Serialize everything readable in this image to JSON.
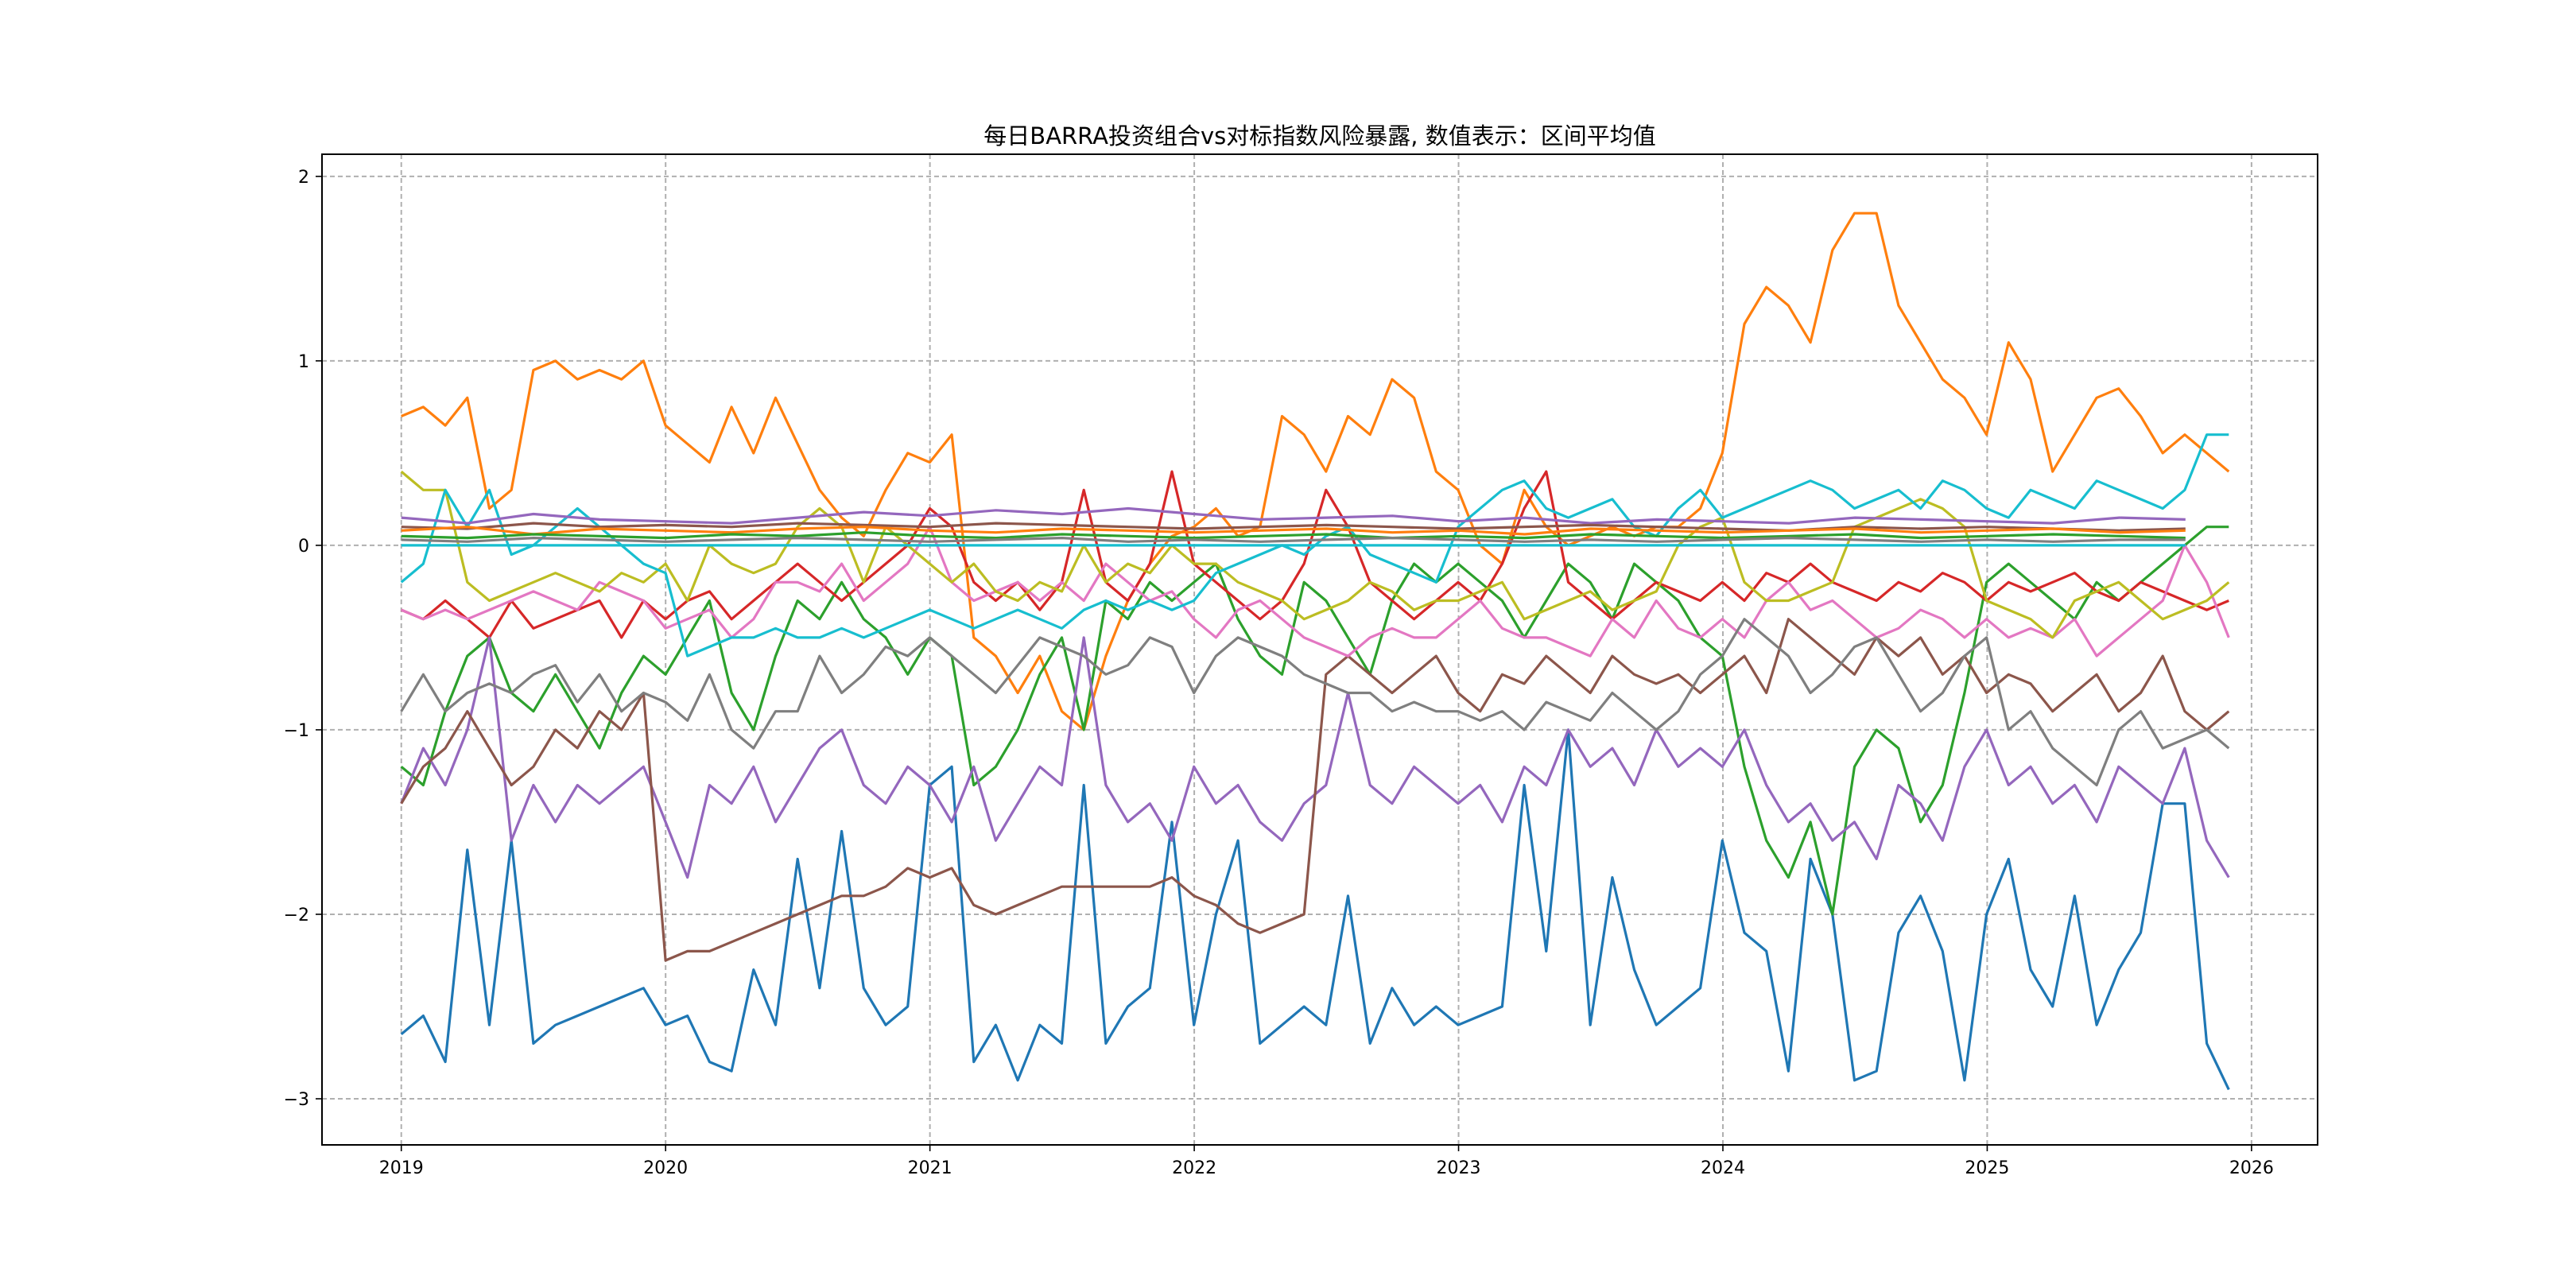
{
  "chart_data": {
    "type": "line",
    "title": "每日BARRA投资组合vs对标指数风险暴露, 数值表示：区间平均值",
    "xlabel": "",
    "ylabel": "",
    "xlim": [
      2018.7,
      2026.25
    ],
    "ylim": [
      -3.25,
      2.12
    ],
    "x_ticks": [
      2019,
      2020,
      2021,
      2022,
      2023,
      2024,
      2025,
      2026
    ],
    "x_tick_labels": [
      "2019",
      "2020",
      "2021",
      "2022",
      "2023",
      "2024",
      "2025",
      "2026"
    ],
    "y_ticks": [
      -3,
      -2,
      -1,
      0,
      1,
      2
    ],
    "y_tick_labels": [
      "−3",
      "−2",
      "−1",
      "0",
      "1",
      "2"
    ],
    "grid": true,
    "legend": "none",
    "series": [
      {
        "color": "#1f77b4",
        "start": 2019.0,
        "step": 0.0833,
        "values": [
          -2.65,
          -2.55,
          -2.8,
          -1.65,
          -2.6,
          -1.6,
          -2.7,
          -2.6,
          -2.55,
          -2.5,
          -2.45,
          -2.4,
          -2.6,
          -2.55,
          -2.8,
          -2.85,
          -2.3,
          -2.6,
          -1.7,
          -2.4,
          -1.55,
          -2.4,
          -2.6,
          -2.5,
          -1.3,
          -1.2,
          -2.8,
          -2.6,
          -2.9,
          -2.6,
          -2.7,
          -1.3,
          -2.7,
          -2.5,
          -2.4,
          -1.5,
          -2.6,
          -2.0,
          -1.6,
          -2.7,
          -2.6,
          -2.5,
          -2.6,
          -1.9,
          -2.7,
          -2.4,
          -2.6,
          -2.5,
          -2.6,
          -2.55,
          -2.5,
          -1.3,
          -2.2,
          -1.0,
          -2.6,
          -1.8,
          -2.3,
          -2.6,
          -2.5,
          -2.4,
          -1.6,
          -2.1,
          -2.2,
          -2.85,
          -1.7,
          -2.0,
          -2.9,
          -2.85,
          -2.1,
          -1.9,
          -2.2,
          -2.9,
          -2.0,
          -1.7,
          -2.3,
          -2.5,
          -1.9,
          -2.6,
          -2.3,
          -2.1,
          -1.4,
          -1.4,
          -2.7,
          -2.95
        ]
      },
      {
        "color": "#ff7f0e",
        "start": 2019.0,
        "step": 0.0833,
        "values": [
          0.7,
          0.75,
          0.65,
          0.8,
          0.2,
          0.3,
          0.95,
          1.0,
          0.9,
          0.95,
          0.9,
          1.0,
          0.65,
          0.55,
          0.45,
          0.75,
          0.5,
          0.8,
          0.55,
          0.3,
          0.15,
          0.05,
          0.3,
          0.5,
          0.45,
          0.6,
          -0.5,
          -0.6,
          -0.8,
          -0.6,
          -0.9,
          -1.0,
          -0.6,
          -0.3,
          -0.1,
          0.05,
          0.1,
          0.2,
          0.05,
          0.1,
          0.7,
          0.6,
          0.4,
          0.7,
          0.6,
          0.9,
          0.8,
          0.4,
          0.3,
          0.0,
          -0.1,
          0.3,
          0.1,
          0.0,
          0.05,
          0.1,
          0.05,
          0.1,
          0.1,
          0.2,
          0.5,
          1.2,
          1.4,
          1.3,
          1.1,
          1.6,
          1.8,
          1.8,
          1.3,
          1.1,
          0.9,
          0.8,
          0.6,
          1.1,
          0.9,
          0.4,
          0.6,
          0.8,
          0.85,
          0.7,
          0.5,
          0.6,
          0.5,
          0.4
        ]
      },
      {
        "color": "#2ca02c",
        "start": 2019.0,
        "step": 0.0833,
        "values": [
          -1.2,
          -1.3,
          -0.9,
          -0.6,
          -0.5,
          -0.8,
          -0.9,
          -0.7,
          -0.9,
          -1.1,
          -0.8,
          -0.6,
          -0.7,
          -0.5,
          -0.3,
          -0.8,
          -1.0,
          -0.6,
          -0.3,
          -0.4,
          -0.2,
          -0.4,
          -0.5,
          -0.7,
          -0.5,
          -0.6,
          -1.3,
          -1.2,
          -1.0,
          -0.7,
          -0.5,
          -1.0,
          -0.3,
          -0.4,
          -0.2,
          -0.3,
          -0.2,
          -0.1,
          -0.4,
          -0.6,
          -0.7,
          -0.2,
          -0.3,
          -0.5,
          -0.7,
          -0.3,
          -0.1,
          -0.2,
          -0.1,
          -0.2,
          -0.3,
          -0.5,
          -0.3,
          -0.1,
          -0.2,
          -0.4,
          -0.1,
          -0.2,
          -0.3,
          -0.5,
          -0.6,
          -1.2,
          -1.6,
          -1.8,
          -1.5,
          -2.0,
          -1.2,
          -1.0,
          -1.1,
          -1.5,
          -1.3,
          -0.8,
          -0.2,
          -0.1,
          -0.2,
          -0.3,
          -0.4,
          -0.2,
          -0.3,
          -0.2,
          -0.1,
          0.0,
          0.1,
          0.1
        ]
      },
      {
        "color": "#d62728",
        "start": 2019.0,
        "step": 0.0833,
        "values": [
          -0.35,
          -0.4,
          -0.3,
          -0.4,
          -0.5,
          -0.3,
          -0.45,
          -0.4,
          -0.35,
          -0.3,
          -0.5,
          -0.3,
          -0.4,
          -0.3,
          -0.25,
          -0.4,
          -0.3,
          -0.2,
          -0.1,
          -0.2,
          -0.3,
          -0.2,
          -0.1,
          0.0,
          0.2,
          0.1,
          -0.2,
          -0.3,
          -0.2,
          -0.35,
          -0.2,
          0.3,
          -0.2,
          -0.3,
          -0.1,
          0.4,
          -0.1,
          -0.2,
          -0.3,
          -0.4,
          -0.3,
          -0.1,
          0.3,
          0.1,
          -0.2,
          -0.3,
          -0.4,
          -0.3,
          -0.2,
          -0.3,
          -0.1,
          0.2,
          0.4,
          -0.2,
          -0.3,
          -0.4,
          -0.3,
          -0.2,
          -0.25,
          -0.3,
          -0.2,
          -0.3,
          -0.15,
          -0.2,
          -0.1,
          -0.2,
          -0.25,
          -0.3,
          -0.2,
          -0.25,
          -0.15,
          -0.2,
          -0.3,
          -0.2,
          -0.25,
          -0.2,
          -0.15,
          -0.25,
          -0.3,
          -0.2,
          -0.25,
          -0.3,
          -0.35,
          -0.3
        ]
      },
      {
        "color": "#9467bd",
        "start": 2019.0,
        "step": 0.0833,
        "values": [
          -1.4,
          -1.1,
          -1.3,
          -1.0,
          -0.5,
          -1.6,
          -1.3,
          -1.5,
          -1.3,
          -1.4,
          -1.3,
          -1.2,
          -1.5,
          -1.8,
          -1.3,
          -1.4,
          -1.2,
          -1.5,
          -1.3,
          -1.1,
          -1.0,
          -1.3,
          -1.4,
          -1.2,
          -1.3,
          -1.5,
          -1.2,
          -1.6,
          -1.4,
          -1.2,
          -1.3,
          -0.5,
          -1.3,
          -1.5,
          -1.4,
          -1.6,
          -1.2,
          -1.4,
          -1.3,
          -1.5,
          -1.6,
          -1.4,
          -1.3,
          -0.8,
          -1.3,
          -1.4,
          -1.2,
          -1.3,
          -1.4,
          -1.3,
          -1.5,
          -1.2,
          -1.3,
          -1.0,
          -1.2,
          -1.1,
          -1.3,
          -1.0,
          -1.2,
          -1.1,
          -1.2,
          -1.0,
          -1.3,
          -1.5,
          -1.4,
          -1.6,
          -1.5,
          -1.7,
          -1.3,
          -1.4,
          -1.6,
          -1.2,
          -1.0,
          -1.3,
          -1.2,
          -1.4,
          -1.3,
          -1.5,
          -1.2,
          -1.3,
          -1.4,
          -1.1,
          -1.6,
          -1.8
        ]
      },
      {
        "color": "#8c564b",
        "start": 2019.0,
        "step": 0.0833,
        "values": [
          -1.4,
          -1.2,
          -1.1,
          -0.9,
          -1.1,
          -1.3,
          -1.2,
          -1.0,
          -1.1,
          -0.9,
          -1.0,
          -0.8,
          -2.25,
          -2.2,
          -2.2,
          -2.15,
          -2.1,
          -2.05,
          -2.0,
          -1.95,
          -1.9,
          -1.9,
          -1.85,
          -1.75,
          -1.8,
          -1.75,
          -1.95,
          -2.0,
          -1.95,
          -1.9,
          -1.85,
          -1.85,
          -1.85,
          -1.85,
          -1.85,
          -1.8,
          -1.9,
          -1.95,
          -2.05,
          -2.1,
          -2.05,
          -2.0,
          -0.7,
          -0.6,
          -0.7,
          -0.8,
          -0.7,
          -0.6,
          -0.8,
          -0.9,
          -0.7,
          -0.75,
          -0.6,
          -0.7,
          -0.8,
          -0.6,
          -0.7,
          -0.75,
          -0.7,
          -0.8,
          -0.7,
          -0.6,
          -0.8,
          -0.4,
          -0.5,
          -0.6,
          -0.7,
          -0.5,
          -0.6,
          -0.5,
          -0.7,
          -0.6,
          -0.8,
          -0.7,
          -0.75,
          -0.9,
          -0.8,
          -0.7,
          -0.9,
          -0.8,
          -0.6,
          -0.9,
          -1.0,
          -0.9
        ]
      },
      {
        "color": "#e377c2",
        "start": 2019.0,
        "step": 0.0833,
        "values": [
          -0.35,
          -0.4,
          -0.35,
          -0.4,
          -0.35,
          -0.3,
          -0.25,
          -0.3,
          -0.35,
          -0.2,
          -0.25,
          -0.3,
          -0.45,
          -0.4,
          -0.35,
          -0.5,
          -0.4,
          -0.2,
          -0.2,
          -0.25,
          -0.1,
          -0.3,
          -0.2,
          -0.1,
          0.1,
          -0.2,
          -0.3,
          -0.25,
          -0.2,
          -0.3,
          -0.2,
          -0.3,
          -0.1,
          -0.2,
          -0.3,
          -0.25,
          -0.4,
          -0.5,
          -0.35,
          -0.3,
          -0.4,
          -0.5,
          -0.55,
          -0.6,
          -0.5,
          -0.45,
          -0.5,
          -0.5,
          -0.4,
          -0.3,
          -0.45,
          -0.5,
          -0.5,
          -0.55,
          -0.6,
          -0.4,
          -0.5,
          -0.3,
          -0.45,
          -0.5,
          -0.4,
          -0.5,
          -0.3,
          -0.2,
          -0.35,
          -0.3,
          -0.4,
          -0.5,
          -0.45,
          -0.35,
          -0.4,
          -0.5,
          -0.4,
          -0.5,
          -0.45,
          -0.5,
          -0.4,
          -0.6,
          -0.5,
          -0.4,
          -0.3,
          0.0,
          -0.2,
          -0.5
        ]
      },
      {
        "color": "#7f7f7f",
        "start": 2019.0,
        "step": 0.0833,
        "values": [
          -0.9,
          -0.7,
          -0.9,
          -0.8,
          -0.75,
          -0.8,
          -0.7,
          -0.65,
          -0.85,
          -0.7,
          -0.9,
          -0.8,
          -0.85,
          -0.95,
          -0.7,
          -1.0,
          -1.1,
          -0.9,
          -0.9,
          -0.6,
          -0.8,
          -0.7,
          -0.55,
          -0.6,
          -0.5,
          -0.6,
          -0.7,
          -0.8,
          -0.65,
          -0.5,
          -0.55,
          -0.6,
          -0.7,
          -0.65,
          -0.5,
          -0.55,
          -0.8,
          -0.6,
          -0.5,
          -0.55,
          -0.6,
          -0.7,
          -0.75,
          -0.8,
          -0.8,
          -0.9,
          -0.85,
          -0.9,
          -0.9,
          -0.95,
          -0.9,
          -1.0,
          -0.85,
          -0.9,
          -0.95,
          -0.8,
          -0.9,
          -1.0,
          -0.9,
          -0.7,
          -0.6,
          -0.4,
          -0.5,
          -0.6,
          -0.8,
          -0.7,
          -0.55,
          -0.5,
          -0.7,
          -0.9,
          -0.8,
          -0.6,
          -0.5,
          -1.0,
          -0.9,
          -1.1,
          -1.2,
          -1.3,
          -1.0,
          -0.9,
          -1.1,
          -1.05,
          -1.0,
          -1.1
        ]
      },
      {
        "color": "#bcbd22",
        "start": 2019.0,
        "step": 0.0833,
        "values": [
          0.4,
          0.3,
          0.3,
          -0.2,
          -0.3,
          -0.25,
          -0.2,
          -0.15,
          -0.2,
          -0.25,
          -0.15,
          -0.2,
          -0.1,
          -0.3,
          0.0,
          -0.1,
          -0.15,
          -0.1,
          0.1,
          0.2,
          0.1,
          -0.2,
          0.1,
          0.0,
          -0.1,
          -0.2,
          -0.1,
          -0.25,
          -0.3,
          -0.2,
          -0.25,
          0.0,
          -0.2,
          -0.1,
          -0.15,
          0.0,
          -0.1,
          -0.1,
          -0.2,
          -0.25,
          -0.3,
          -0.4,
          -0.35,
          -0.3,
          -0.2,
          -0.25,
          -0.35,
          -0.3,
          -0.3,
          -0.25,
          -0.2,
          -0.4,
          -0.35,
          -0.3,
          -0.25,
          -0.35,
          -0.3,
          -0.25,
          0.0,
          0.1,
          0.15,
          -0.2,
          -0.3,
          -0.3,
          -0.25,
          -0.2,
          0.1,
          0.15,
          0.2,
          0.25,
          0.2,
          0.1,
          -0.3,
          -0.35,
          -0.4,
          -0.5,
          -0.3,
          -0.25,
          -0.2,
          -0.3,
          -0.4,
          -0.35,
          -0.3,
          -0.2
        ]
      },
      {
        "color": "#17becf",
        "start": 2019.0,
        "step": 0.0833,
        "values": [
          -0.2,
          -0.1,
          0.3,
          0.1,
          0.3,
          -0.05,
          0.0,
          0.1,
          0.2,
          0.1,
          0.0,
          -0.1,
          -0.15,
          -0.6,
          -0.55,
          -0.5,
          -0.5,
          -0.45,
          -0.5,
          -0.5,
          -0.45,
          -0.5,
          -0.45,
          -0.4,
          -0.35,
          -0.4,
          -0.45,
          -0.4,
          -0.35,
          -0.4,
          -0.45,
          -0.35,
          -0.3,
          -0.35,
          -0.3,
          -0.35,
          -0.3,
          -0.15,
          -0.1,
          -0.05,
          0.0,
          -0.05,
          0.05,
          0.1,
          -0.05,
          -0.1,
          -0.15,
          -0.2,
          0.1,
          0.2,
          0.3,
          0.35,
          0.2,
          0.15,
          0.2,
          0.25,
          0.1,
          0.05,
          0.2,
          0.3,
          0.15,
          0.2,
          0.25,
          0.3,
          0.35,
          0.3,
          0.2,
          0.25,
          0.3,
          0.2,
          0.35,
          0.3,
          0.2,
          0.15,
          0.3,
          0.25,
          0.2,
          0.35,
          0.3,
          0.25,
          0.2,
          0.3,
          0.6,
          0.6
        ]
      },
      {
        "color": "#9467bd",
        "start": 2019.0,
        "step": 0.25,
        "values": [
          0.15,
          0.12,
          0.17,
          0.14,
          0.13,
          0.12,
          0.15,
          0.18,
          0.16,
          0.19,
          0.17,
          0.2,
          0.17,
          0.14,
          0.15,
          0.16,
          0.13,
          0.15,
          0.12,
          0.14,
          0.13,
          0.12,
          0.15,
          0.14,
          0.13,
          0.12,
          0.15,
          0.14
        ]
      },
      {
        "color": "#8c564b",
        "start": 2019.0,
        "step": 0.25,
        "values": [
          0.1,
          0.09,
          0.12,
          0.1,
          0.11,
          0.1,
          0.12,
          0.11,
          0.1,
          0.12,
          0.11,
          0.1,
          0.09,
          0.1,
          0.11,
          0.1,
          0.09,
          0.1,
          0.11,
          0.1,
          0.09,
          0.08,
          0.1,
          0.09,
          0.1,
          0.09,
          0.08,
          0.09
        ]
      },
      {
        "color": "#ff7f0e",
        "start": 2019.0,
        "step": 0.25,
        "values": [
          0.08,
          0.1,
          0.06,
          0.09,
          0.08,
          0.07,
          0.09,
          0.1,
          0.08,
          0.07,
          0.09,
          0.08,
          0.07,
          0.08,
          0.09,
          0.07,
          0.08,
          0.06,
          0.09,
          0.08,
          0.07,
          0.08,
          0.09,
          0.07,
          0.08,
          0.09,
          0.07,
          0.08
        ]
      },
      {
        "color": "#2ca02c",
        "start": 2019.0,
        "step": 0.25,
        "values": [
          0.05,
          0.04,
          0.06,
          0.05,
          0.04,
          0.06,
          0.05,
          0.07,
          0.05,
          0.04,
          0.06,
          0.05,
          0.04,
          0.05,
          0.06,
          0.04,
          0.05,
          0.04,
          0.06,
          0.05,
          0.04,
          0.05,
          0.06,
          0.04,
          0.05,
          0.06,
          0.05,
          0.04
        ]
      },
      {
        "color": "#7f7f7f",
        "start": 2019.0,
        "step": 0.25,
        "values": [
          0.03,
          0.02,
          0.04,
          0.03,
          0.02,
          0.03,
          0.04,
          0.03,
          0.02,
          0.03,
          0.04,
          0.02,
          0.03,
          0.02,
          0.03,
          0.04,
          0.03,
          0.02,
          0.03,
          0.02,
          0.03,
          0.04,
          0.03,
          0.02,
          0.03,
          0.02,
          0.03,
          0.03
        ]
      },
      {
        "color": "#17becf",
        "start": 2019.0,
        "step": 0.25,
        "values": [
          0.0,
          0.0,
          0.0,
          0.0,
          0.0,
          0.0,
          0.0,
          0.0,
          0.0,
          0.0,
          0.0,
          0.0,
          0.0,
          0.0,
          0.0,
          0.0,
          0.0,
          0.0,
          0.0,
          0.0,
          0.0,
          0.0,
          0.0,
          0.0,
          0.0,
          0.0,
          0.0,
          0.0
        ]
      }
    ]
  }
}
